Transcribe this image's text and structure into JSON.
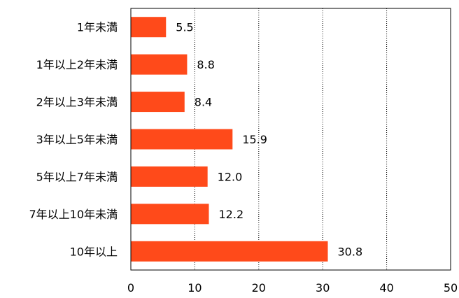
{
  "chart_data": {
    "type": "bar",
    "orientation": "horizontal",
    "categories": [
      "1年未満",
      "1年以上2年未満",
      "2年以上3年未満",
      "3年以上5年未満",
      "5年以上7年未満",
      "7年以上10年未満",
      "10年以上"
    ],
    "values": [
      5.5,
      8.8,
      8.4,
      15.9,
      12.0,
      12.2,
      30.8
    ],
    "value_labels": [
      "5.5",
      "8.8",
      "8.4",
      "15.9",
      "12.0",
      "12.2",
      "30.8"
    ],
    "xlim": [
      0,
      50
    ],
    "x_ticks": [
      "0",
      "10",
      "20",
      "30",
      "40",
      "50"
    ],
    "x_tick_values": [
      0,
      10,
      20,
      30,
      40,
      50
    ],
    "title": "",
    "xlabel": "",
    "ylabel": "",
    "grid": "vertical dotted",
    "legend": "none",
    "bar_color": "#FF4A1A"
  }
}
